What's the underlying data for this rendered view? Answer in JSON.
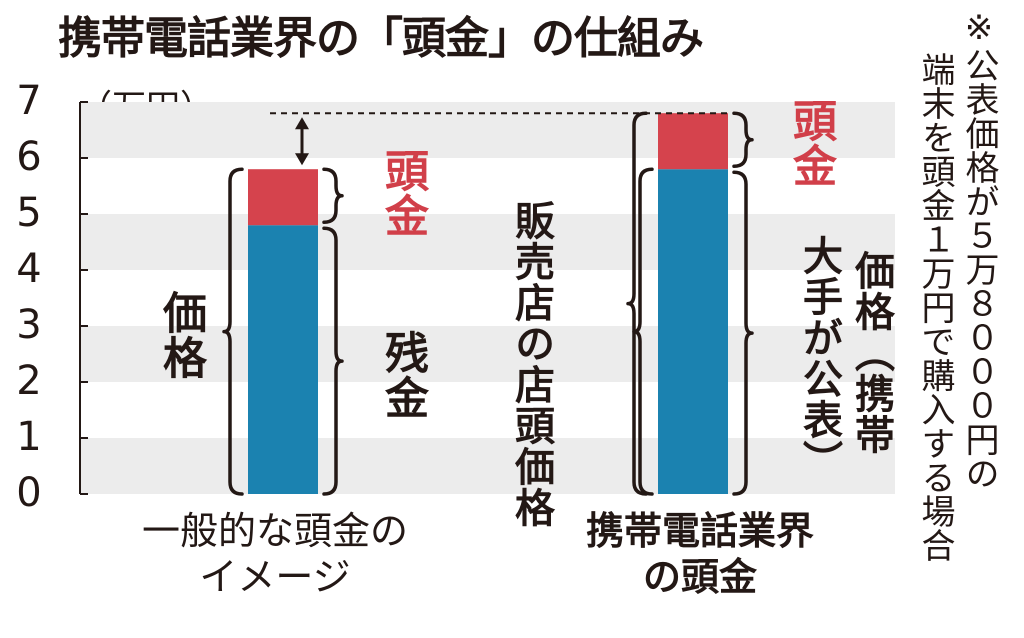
{
  "title": "携帯電話業界の「頭金」の仕組み",
  "unit": "（万円）",
  "note": {
    "line1": "※公表価格が５万８０００円の",
    "line2": "端末を頭金１万円で購入する場合"
  },
  "colors": {
    "down_payment": "#d5434d",
    "remaining": "#1b82b0",
    "band": "#ececec"
  },
  "chart_data": {
    "type": "bar",
    "stacked": true,
    "ylim": [
      0,
      7
    ],
    "ytick_labels": [
      "0",
      "1",
      "2",
      "3",
      "4",
      "5",
      "6",
      "7"
    ],
    "grid": "alternating bands",
    "categories": [
      {
        "line1": "一般的な頭金の",
        "line2": "イメージ"
      },
      {
        "line1": "携帯電話業界",
        "line2": "の頭金"
      }
    ],
    "series": [
      {
        "name": "",
        "values": [
          4.8,
          5.8
        ]
      },
      {
        "name": "頭金",
        "values": [
          1.0,
          1.0
        ]
      }
    ],
    "annotations": {
      "bar1_left": "価格",
      "bar1_top": "頭金",
      "bar1_bottom": "残金",
      "bar2_left": "販売店の店頭価格",
      "bar2_top": "頭金",
      "bar2_right_a": "価格（携帯",
      "bar2_right_b": "大手が公表）"
    }
  }
}
